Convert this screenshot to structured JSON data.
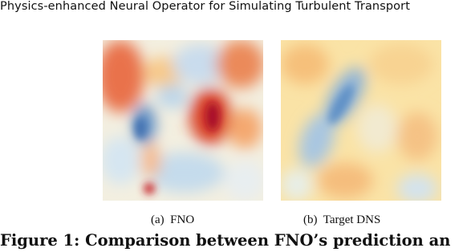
{
  "header": {
    "title": "Physics-enhanced Neural Operator for Simulating Turbulent Transport"
  },
  "figure": {
    "subfigures": [
      {
        "label": "(a)",
        "caption": "FNO"
      },
      {
        "label": "(b)",
        "caption": "Target DNS"
      }
    ],
    "caption": {
      "label": "Figure 1:",
      "text": "Comparison between FNO’s prediction an"
    }
  }
}
